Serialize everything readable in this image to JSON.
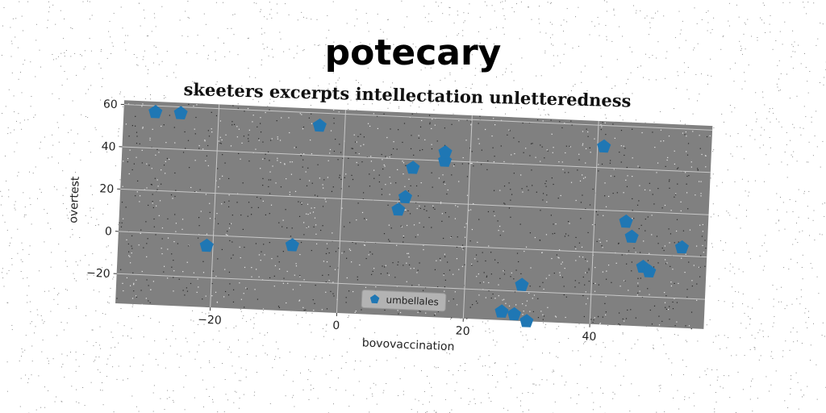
{
  "chart_data": {
    "type": "scatter",
    "title": "potecary",
    "subtitle": "skeeters excerpts intellectation unletteredness",
    "xlabel": "bovovaccination",
    "ylabel": "overtest",
    "xlim": [
      -35,
      58
    ],
    "ylim": [
      -34,
      62
    ],
    "xticks": [
      -20,
      0,
      20,
      40
    ],
    "yticks": [
      -20,
      0,
      20,
      40,
      60
    ],
    "grid": true,
    "legend": {
      "placement": "bottom-center",
      "entries": [
        "umbellales"
      ]
    },
    "series": [
      {
        "name": "umbellales",
        "color": "#1f77b4",
        "marker": "pentagon",
        "points": [
          [
            -30,
            57
          ],
          [
            -26,
            57
          ],
          [
            -4,
            54
          ],
          [
            -21,
            -5
          ],
          [
            -7.5,
            -3
          ],
          [
            9,
            16
          ],
          [
            10,
            22
          ],
          [
            11,
            36
          ],
          [
            16,
            40
          ],
          [
            16,
            44
          ],
          [
            26,
            -30
          ],
          [
            28,
            -31
          ],
          [
            29,
            -17
          ],
          [
            30,
            -34
          ],
          [
            41,
            50
          ],
          [
            45,
            15
          ],
          [
            46,
            8
          ],
          [
            48,
            -6
          ],
          [
            49,
            -8
          ],
          [
            54,
            4
          ]
        ]
      }
    ]
  }
}
